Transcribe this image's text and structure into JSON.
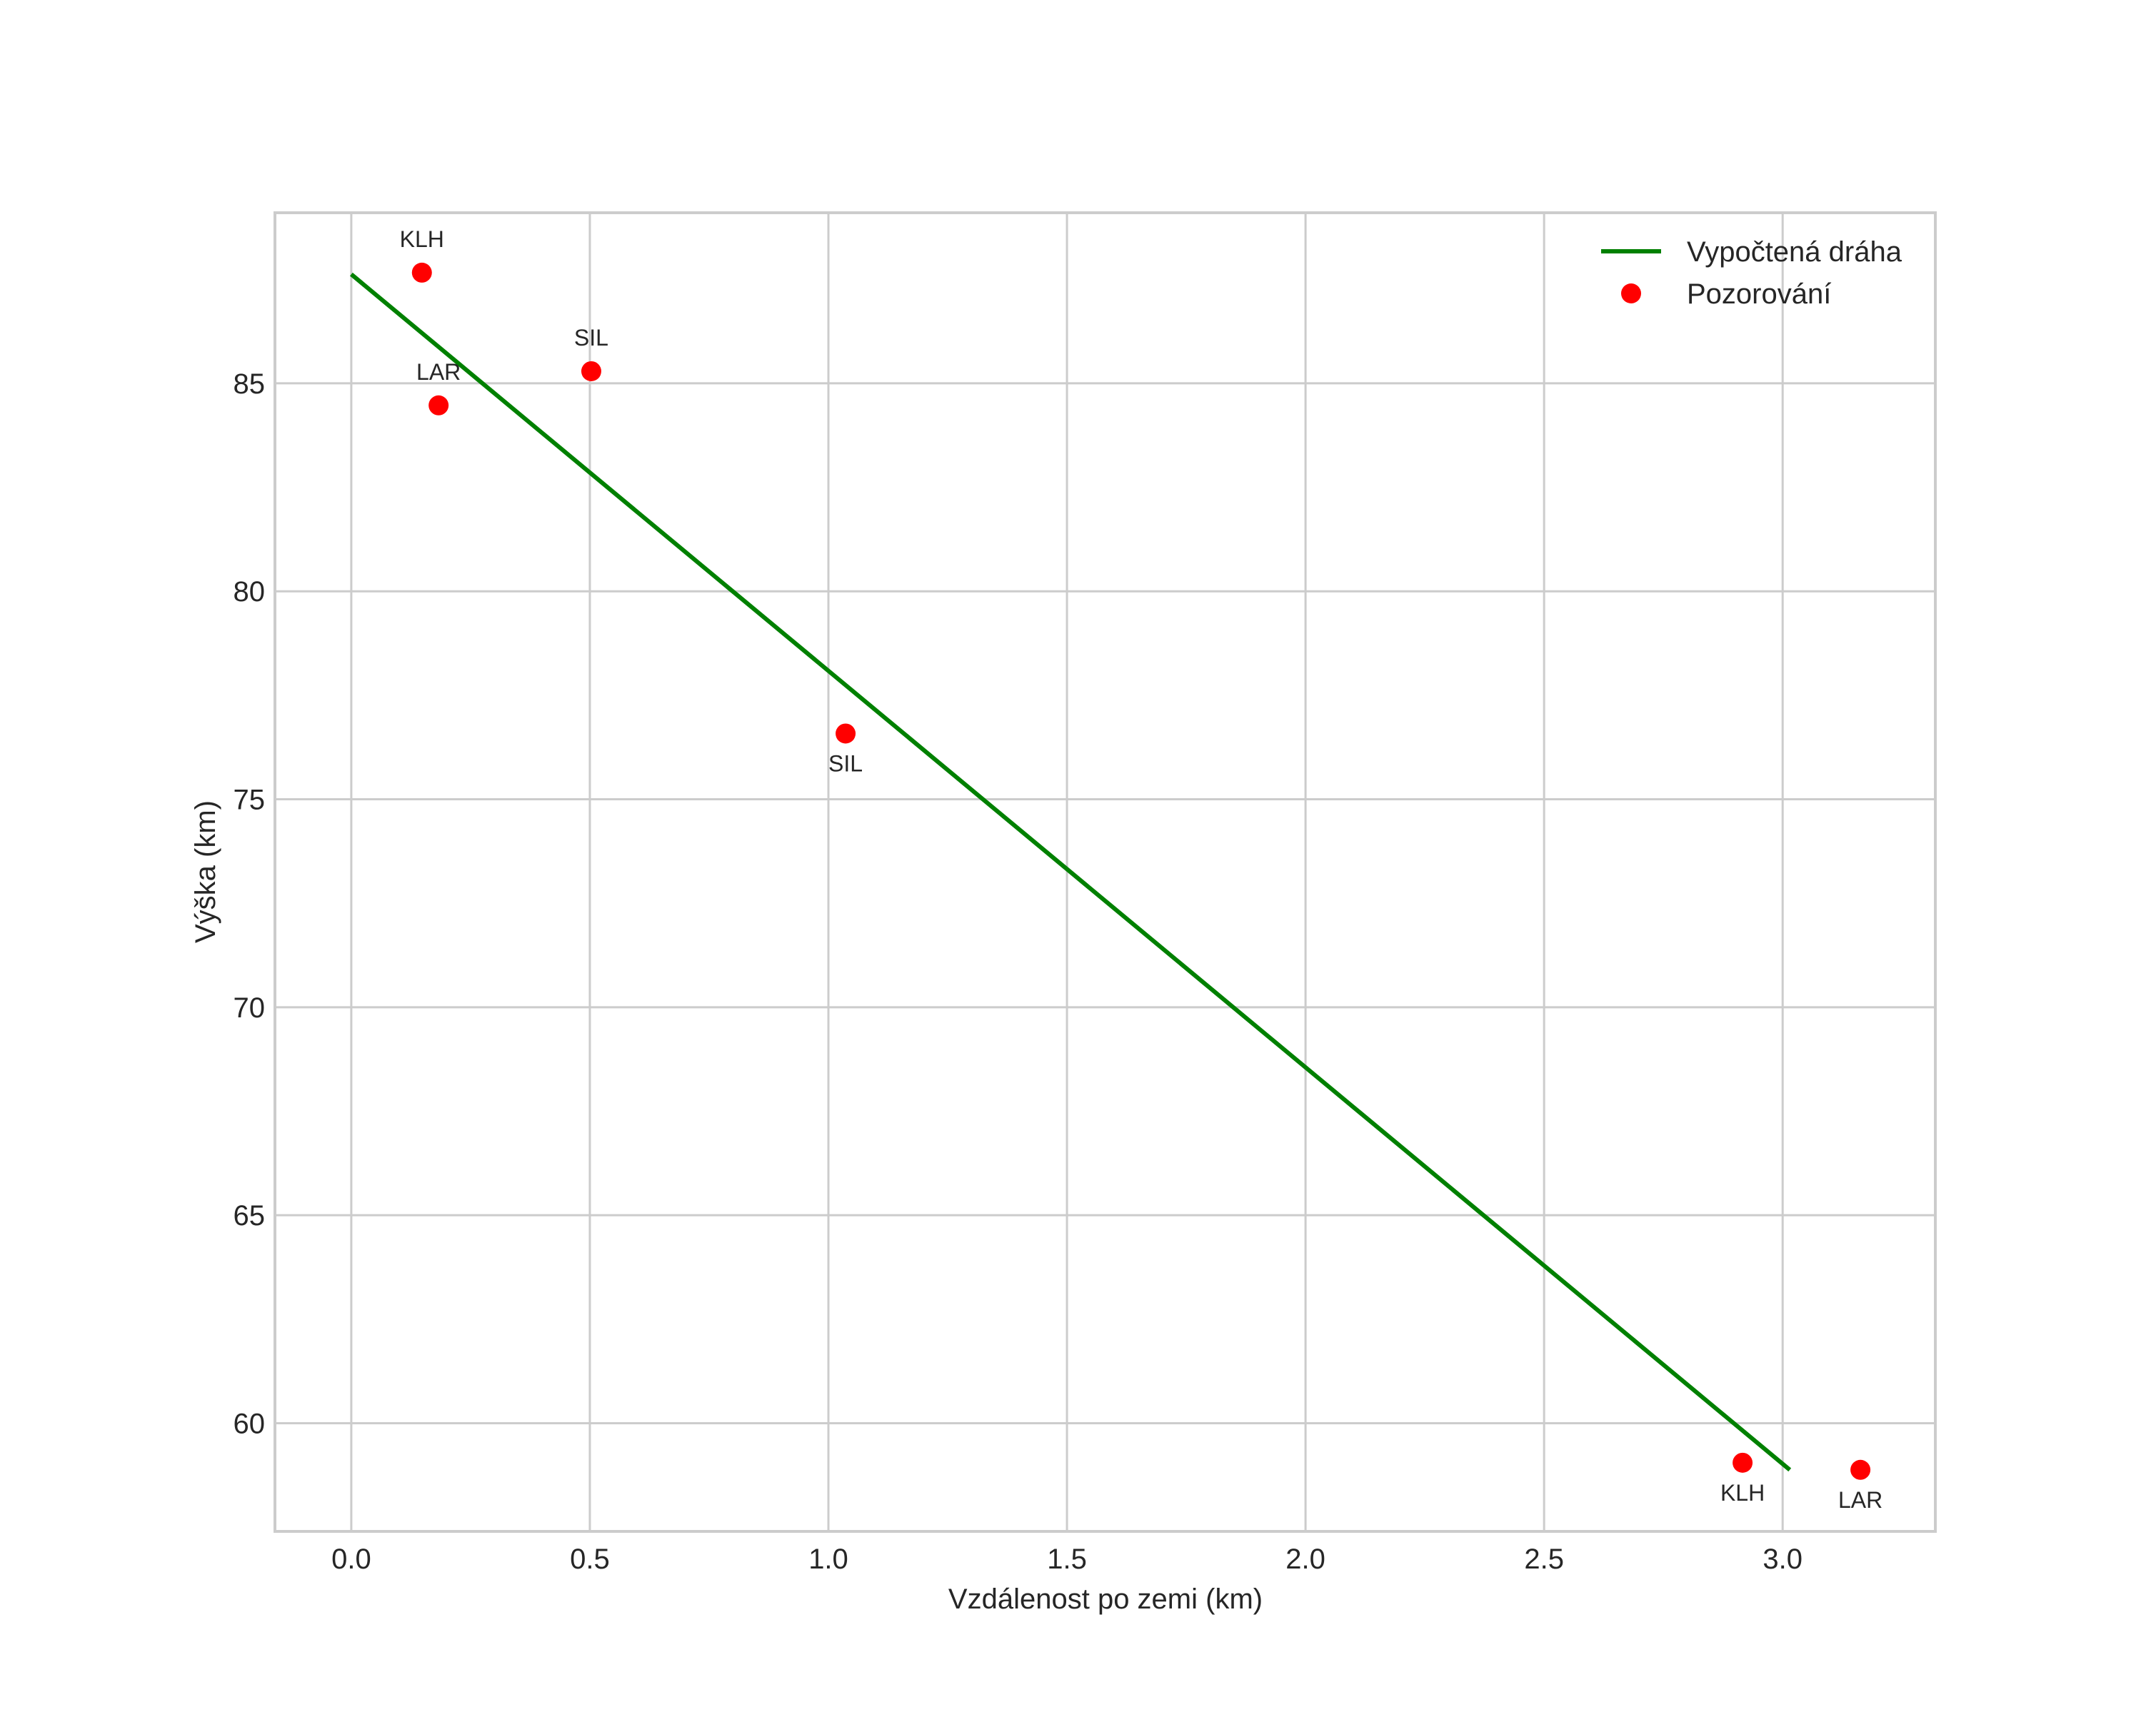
{
  "chart_data": {
    "type": "scatter",
    "title": "",
    "xlabel": "Vzdálenost po zemi (km)",
    "ylabel": "Výška (km)",
    "xlim": [
      -0.16,
      3.32
    ],
    "ylim": [
      57.4,
      89.1
    ],
    "grid": true,
    "legend_position": "upper right",
    "x_ticks": [
      0.0,
      0.5,
      1.0,
      1.5,
      2.0,
      2.5,
      3.0
    ],
    "x_tick_labels": [
      "0.0",
      "0.5",
      "1.0",
      "1.5",
      "2.0",
      "2.5",
      "3.0"
    ],
    "y_ticks": [
      60,
      65,
      70,
      75,
      80,
      85
    ],
    "y_tick_labels": [
      "60",
      "65",
      "70",
      "75",
      "80",
      "85"
    ],
    "series": [
      {
        "name": "Vypočtená dráha",
        "type": "line",
        "color": "#008000",
        "x": [
          0.0,
          3.015
        ],
        "y": [
          87.62,
          58.88
        ]
      },
      {
        "name": "Pozorování",
        "type": "scatter",
        "color": "#ff0000",
        "points": [
          {
            "label": "KLH",
            "x": 0.148,
            "y": 87.66,
            "label_pos": "above"
          },
          {
            "label": "LAR",
            "x": 0.183,
            "y": 84.47,
            "label_pos": "above"
          },
          {
            "label": "SIL",
            "x": 0.503,
            "y": 85.29,
            "label_pos": "above"
          },
          {
            "label": "SIL",
            "x": 1.036,
            "y": 76.58,
            "label_pos": "below"
          },
          {
            "label": "KLH",
            "x": 2.916,
            "y": 59.05,
            "label_pos": "below"
          },
          {
            "label": "LAR",
            "x": 3.163,
            "y": 58.88,
            "label_pos": "below"
          }
        ]
      }
    ]
  },
  "legend": {
    "items": [
      {
        "label": "Vypočtená dráha",
        "marker": "line",
        "color": "#008000"
      },
      {
        "label": "Pozorování",
        "marker": "dot",
        "color": "#ff0000"
      }
    ]
  }
}
